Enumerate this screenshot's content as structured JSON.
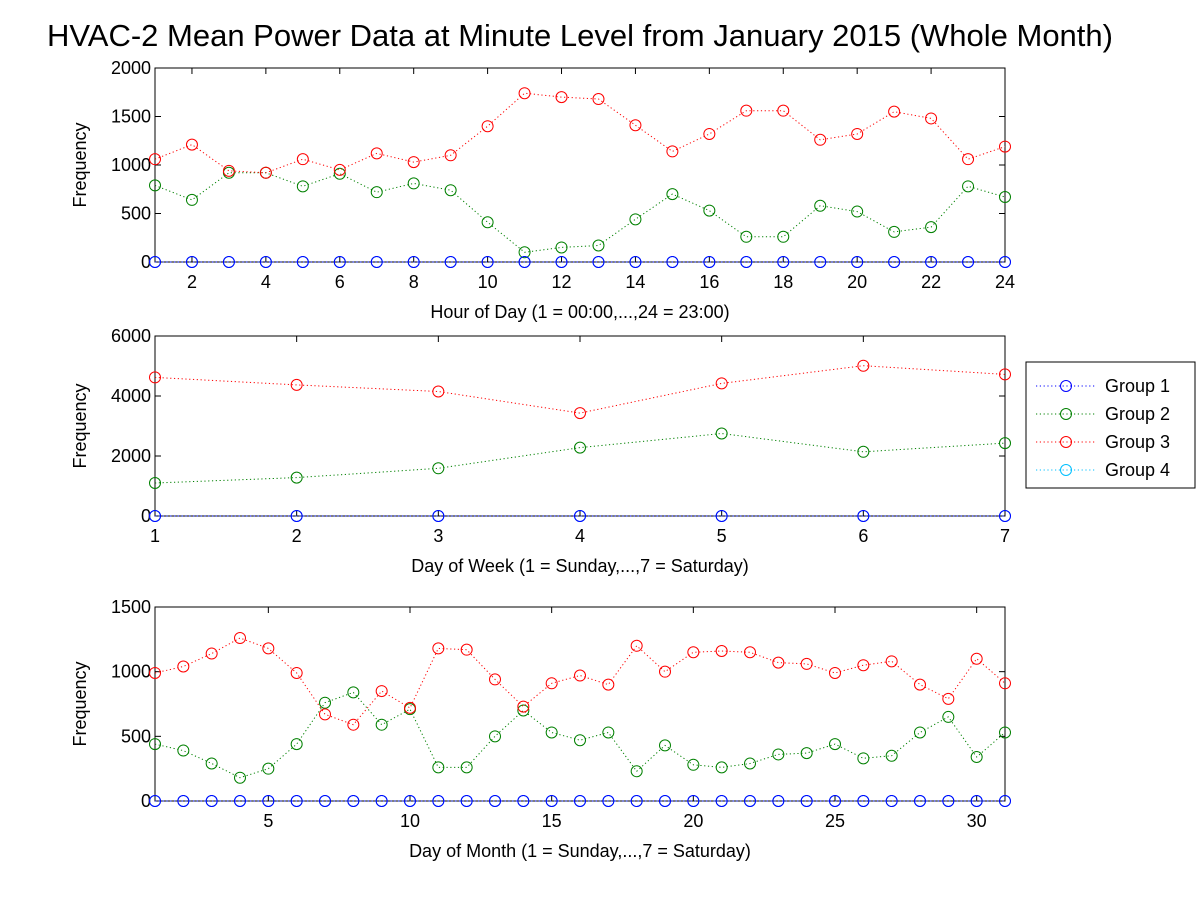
{
  "title": "HVAC-2 Mean Power Data at Minute Level from January 2015 (Whole Month)",
  "colors": {
    "Group 1": "#0000ff",
    "Group 2": "#008000",
    "Group 3": "#ff0000",
    "Group 4": "#00bfff"
  },
  "chart_data": [
    {
      "type": "line",
      "marker": "circle",
      "line_style": "dotted",
      "grid": false,
      "xlabel": "Hour of Day (1 = 00:00,...,24 = 23:00)",
      "ylabel": "Frequency",
      "xlim": [
        1,
        24
      ],
      "ylim": [
        0,
        2000
      ],
      "xticks": [
        2,
        4,
        6,
        8,
        10,
        12,
        14,
        16,
        18,
        20,
        22,
        24
      ],
      "yticks": [
        0,
        500,
        1000,
        1500,
        2000
      ],
      "x": [
        1,
        2,
        3,
        4,
        5,
        6,
        7,
        8,
        9,
        10,
        11,
        12,
        13,
        14,
        15,
        16,
        17,
        18,
        19,
        20,
        21,
        22,
        23,
        24
      ],
      "series": [
        {
          "name": "Group 1",
          "values": [
            0,
            0,
            0,
            0,
            0,
            0,
            0,
            0,
            0,
            0,
            0,
            0,
            0,
            0,
            0,
            0,
            0,
            0,
            0,
            0,
            0,
            0,
            0,
            0
          ]
        },
        {
          "name": "Group 2",
          "values": [
            790,
            640,
            920,
            920,
            780,
            910,
            720,
            810,
            740,
            410,
            100,
            150,
            170,
            440,
            700,
            530,
            260,
            260,
            580,
            520,
            310,
            360,
            780,
            670
          ]
        },
        {
          "name": "Group 3",
          "values": [
            1060,
            1210,
            940,
            920,
            1060,
            950,
            1120,
            1030,
            1100,
            1400,
            1740,
            1700,
            1680,
            1410,
            1140,
            1320,
            1560,
            1560,
            1260,
            1320,
            1550,
            1480,
            1060,
            1190
          ]
        },
        {
          "name": "Group 4",
          "values": [
            0,
            0,
            0,
            0,
            0,
            0,
            0,
            0,
            0,
            0,
            0,
            0,
            0,
            0,
            0,
            0,
            0,
            0,
            0,
            0,
            0,
            0,
            0,
            0
          ]
        }
      ]
    },
    {
      "type": "line",
      "marker": "circle",
      "line_style": "dotted",
      "grid": false,
      "xlabel": "Day of Week (1 = Sunday,...,7 = Saturday)",
      "ylabel": "Frequency",
      "xlim": [
        1,
        7
      ],
      "ylim": [
        0,
        6000
      ],
      "xticks": [
        1,
        2,
        3,
        4,
        5,
        6,
        7
      ],
      "yticks": [
        0,
        2000,
        4000,
        6000
      ],
      "x": [
        1,
        2,
        3,
        4,
        5,
        6,
        7
      ],
      "legend": {
        "position": "outside-right",
        "entries": [
          "Group 1",
          "Group 2",
          "Group 3",
          "Group 4"
        ]
      },
      "series": [
        {
          "name": "Group 1",
          "values": [
            0,
            0,
            0,
            0,
            0,
            0,
            0
          ]
        },
        {
          "name": "Group 2",
          "values": [
            1100,
            1280,
            1590,
            2280,
            2750,
            2140,
            2430
          ]
        },
        {
          "name": "Group 3",
          "values": [
            4620,
            4370,
            4150,
            3430,
            4420,
            5010,
            4720
          ]
        },
        {
          "name": "Group 4",
          "values": [
            0,
            0,
            0,
            0,
            0,
            0,
            0
          ]
        }
      ]
    },
    {
      "type": "line",
      "marker": "circle",
      "line_style": "dotted",
      "grid": false,
      "xlabel": "Day of Month (1 = Sunday,...,7 = Saturday)",
      "ylabel": "Frequency",
      "xlim": [
        1,
        31
      ],
      "ylim": [
        0,
        1500
      ],
      "xticks": [
        5,
        10,
        15,
        20,
        25,
        30
      ],
      "yticks": [
        0,
        500,
        1000,
        1500
      ],
      "x": [
        1,
        2,
        3,
        4,
        5,
        6,
        7,
        8,
        9,
        10,
        11,
        12,
        13,
        14,
        15,
        16,
        17,
        18,
        19,
        20,
        21,
        22,
        23,
        24,
        25,
        26,
        27,
        28,
        29,
        30,
        31
      ],
      "series": [
        {
          "name": "Group 1",
          "values": [
            0,
            0,
            0,
            0,
            0,
            0,
            0,
            0,
            0,
            0,
            0,
            0,
            0,
            0,
            0,
            0,
            0,
            0,
            0,
            0,
            0,
            0,
            0,
            0,
            0,
            0,
            0,
            0,
            0,
            0,
            0
          ]
        },
        {
          "name": "Group 2",
          "values": [
            440,
            390,
            290,
            180,
            250,
            440,
            760,
            840,
            590,
            710,
            260,
            260,
            500,
            700,
            530,
            470,
            530,
            230,
            430,
            280,
            260,
            290,
            360,
            370,
            440,
            330,
            350,
            530,
            650,
            340,
            530
          ]
        },
        {
          "name": "Group 3",
          "values": [
            990,
            1040,
            1140,
            1260,
            1180,
            990,
            670,
            590,
            850,
            720,
            1180,
            1170,
            940,
            730,
            910,
            970,
            900,
            1200,
            1000,
            1150,
            1160,
            1150,
            1070,
            1060,
            990,
            1050,
            1080,
            900,
            790,
            1100,
            910
          ]
        },
        {
          "name": "Group 4",
          "values": [
            0,
            0,
            0,
            0,
            0,
            0,
            0,
            0,
            0,
            0,
            0,
            0,
            0,
            0,
            0,
            0,
            0,
            0,
            0,
            0,
            0,
            0,
            0,
            0,
            0,
            0,
            0,
            0,
            0,
            0,
            0
          ]
        }
      ]
    }
  ]
}
